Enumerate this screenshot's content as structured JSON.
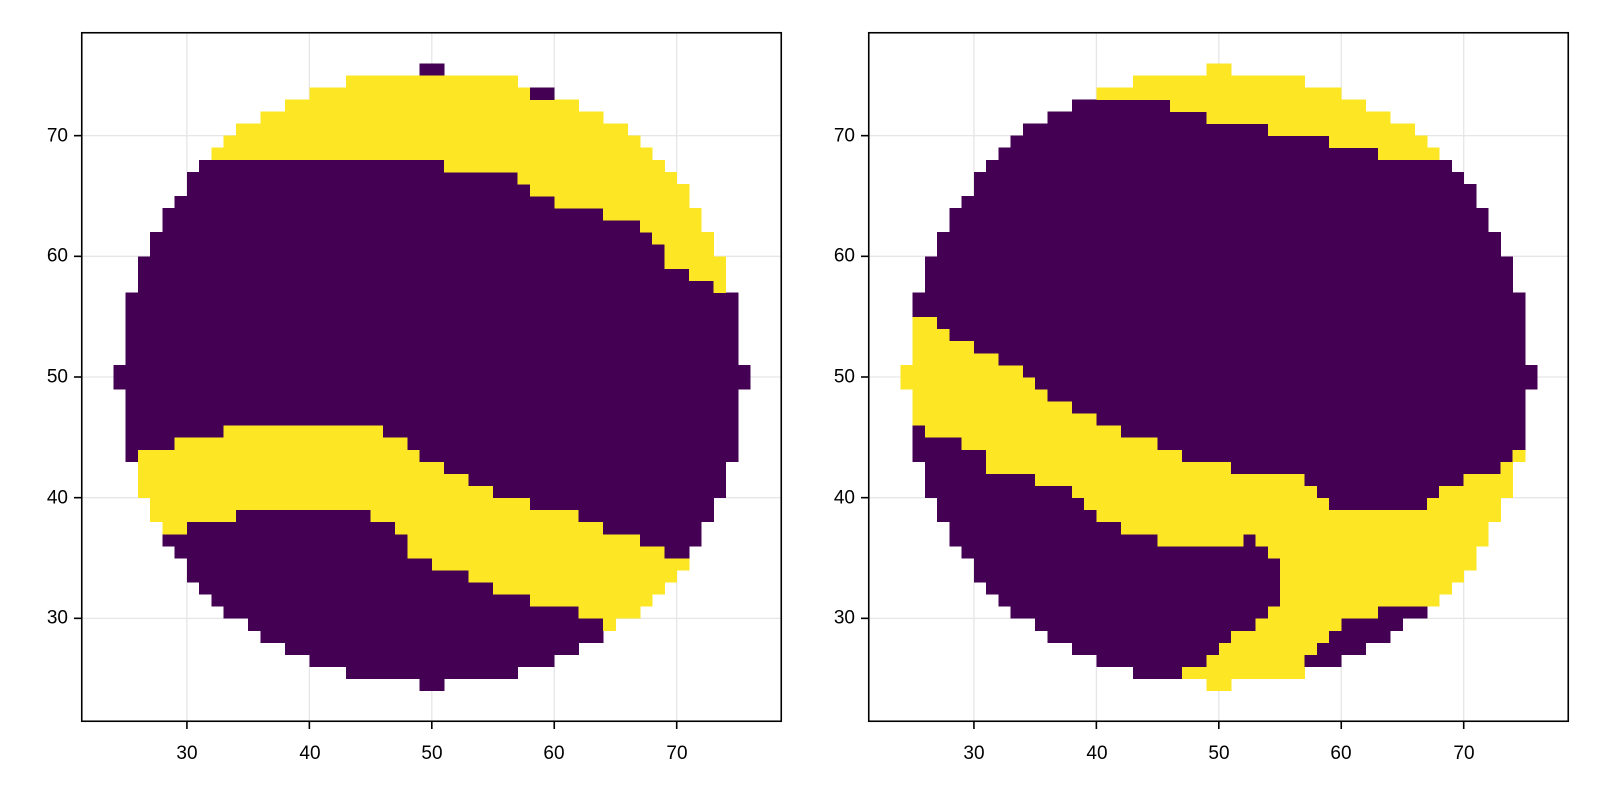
{
  "colors": {
    "low": "#440154",
    "high": "#FDE725",
    "grid": "#e6e6e6",
    "frame": "#000000"
  },
  "chart_data": [
    {
      "type": "heatmap",
      "title": "",
      "xlabel": "",
      "ylabel": "",
      "xlim": [
        21.35,
        78.6
      ],
      "ylim": [
        21.41,
        78.59
      ],
      "xticks": [
        30,
        40,
        50,
        60,
        70
      ],
      "yticks": [
        30,
        40,
        50,
        60,
        70
      ],
      "grid": true,
      "cell_size": 1,
      "encoding": "rows[y_lower] = list of [x_start, x_end, value] (x_end exclusive); value 0=dark(#440154), 1=yellow(#FDE725)",
      "rows": {
        "75": [
          [
            49,
            51,
            0
          ]
        ],
        "74": [
          [
            43,
            57,
            1
          ]
        ],
        "73": [
          [
            40,
            58,
            1
          ],
          [
            58,
            60,
            0
          ]
        ],
        "72": [
          [
            38,
            62,
            1
          ]
        ],
        "71": [
          [
            36,
            64,
            1
          ]
        ],
        "70": [
          [
            34,
            66,
            1
          ]
        ],
        "69": [
          [
            33,
            67,
            1
          ]
        ],
        "68": [
          [
            32,
            68,
            1
          ]
        ],
        "67": [
          [
            31,
            51,
            0
          ],
          [
            51,
            69,
            1
          ]
        ],
        "66": [
          [
            30,
            57,
            0
          ],
          [
            57,
            70,
            1
          ]
        ],
        "65": [
          [
            30,
            58,
            0
          ],
          [
            58,
            71,
            1
          ]
        ],
        "64": [
          [
            29,
            60,
            0
          ],
          [
            60,
            71,
            1
          ]
        ],
        "63": [
          [
            28,
            64,
            0
          ],
          [
            64,
            72,
            1
          ]
        ],
        "62": [
          [
            28,
            67,
            0
          ],
          [
            67,
            72,
            1
          ]
        ],
        "61": [
          [
            27,
            68,
            0
          ],
          [
            68,
            73,
            1
          ]
        ],
        "60": [
          [
            27,
            69,
            0
          ],
          [
            69,
            73,
            1
          ]
        ],
        "59": [
          [
            26,
            69,
            0
          ],
          [
            69,
            74,
            1
          ]
        ],
        "58": [
          [
            26,
            71,
            0
          ],
          [
            71,
            74,
            1
          ]
        ],
        "57": [
          [
            26,
            73,
            0
          ],
          [
            73,
            74,
            1
          ]
        ],
        "56": [
          [
            25,
            75,
            0
          ]
        ],
        "55": [
          [
            25,
            75,
            0
          ]
        ],
        "54": [
          [
            25,
            75,
            0
          ]
        ],
        "53": [
          [
            25,
            75,
            0
          ]
        ],
        "52": [
          [
            25,
            75,
            0
          ]
        ],
        "51": [
          [
            25,
            75,
            0
          ]
        ],
        "50": [
          [
            24,
            76,
            0
          ]
        ],
        "49": [
          [
            24,
            76,
            0
          ]
        ],
        "48": [
          [
            25,
            75,
            0
          ]
        ],
        "47": [
          [
            25,
            75,
            0
          ]
        ],
        "46": [
          [
            25,
            75,
            0
          ]
        ],
        "45": [
          [
            25,
            33,
            0
          ],
          [
            33,
            46,
            1
          ],
          [
            46,
            75,
            0
          ]
        ],
        "44": [
          [
            25,
            29,
            0
          ],
          [
            29,
            48,
            1
          ],
          [
            48,
            75,
            0
          ]
        ],
        "43": [
          [
            25,
            26,
            0
          ],
          [
            26,
            49,
            1
          ],
          [
            49,
            75,
            0
          ]
        ],
        "42": [
          [
            26,
            51,
            1
          ],
          [
            51,
            74,
            0
          ]
        ],
        "41": [
          [
            26,
            53,
            1
          ],
          [
            53,
            74,
            0
          ]
        ],
        "40": [
          [
            26,
            55,
            1
          ],
          [
            55,
            74,
            0
          ]
        ],
        "39": [
          [
            27,
            58,
            1
          ],
          [
            58,
            73,
            0
          ]
        ],
        "38": [
          [
            27,
            34,
            1
          ],
          [
            34,
            45,
            0
          ],
          [
            45,
            62,
            1
          ],
          [
            62,
            73,
            0
          ]
        ],
        "37": [
          [
            28,
            30,
            1
          ],
          [
            30,
            47,
            0
          ],
          [
            47,
            64,
            1
          ],
          [
            64,
            72,
            0
          ]
        ],
        "36": [
          [
            28,
            48,
            0
          ],
          [
            48,
            67,
            1
          ],
          [
            67,
            72,
            0
          ]
        ],
        "35": [
          [
            29,
            48,
            0
          ],
          [
            48,
            69,
            1
          ],
          [
            69,
            71,
            0
          ]
        ],
        "34": [
          [
            30,
            50,
            0
          ],
          [
            50,
            71,
            1
          ]
        ],
        "33": [
          [
            30,
            53,
            0
          ],
          [
            53,
            70,
            1
          ]
        ],
        "32": [
          [
            31,
            55,
            0
          ],
          [
            55,
            69,
            1
          ]
        ],
        "31": [
          [
            32,
            58,
            0
          ],
          [
            58,
            68,
            1
          ]
        ],
        "30": [
          [
            33,
            62,
            0
          ],
          [
            62,
            67,
            1
          ]
        ],
        "29": [
          [
            35,
            64,
            0
          ],
          [
            64,
            65,
            1
          ]
        ],
        "28": [
          [
            36,
            64,
            0
          ]
        ],
        "27": [
          [
            38,
            62,
            0
          ]
        ],
        "26": [
          [
            40,
            60,
            0
          ]
        ],
        "25": [
          [
            43,
            57,
            0
          ]
        ],
        "24": [
          [
            49,
            51,
            0
          ]
        ]
      }
    },
    {
      "type": "heatmap",
      "title": "",
      "xlabel": "",
      "ylabel": "",
      "xlim": [
        21.35,
        78.6
      ],
      "ylim": [
        21.41,
        78.59
      ],
      "xticks": [
        30,
        40,
        50,
        60,
        70
      ],
      "yticks": [
        30,
        40,
        50,
        60,
        70
      ],
      "grid": true,
      "cell_size": 1,
      "encoding": "rows[y_lower] = list of [x_start, x_end, value] (x_end exclusive); value 0=dark(#440154), 1=yellow(#FDE725)",
      "rows": {
        "75": [
          [
            49,
            51,
            1
          ]
        ],
        "74": [
          [
            43,
            57,
            1
          ]
        ],
        "73": [
          [
            40,
            60,
            1
          ]
        ],
        "72": [
          [
            38,
            46,
            0
          ],
          [
            46,
            62,
            1
          ]
        ],
        "71": [
          [
            36,
            49,
            0
          ],
          [
            49,
            64,
            1
          ]
        ],
        "70": [
          [
            34,
            54,
            0
          ],
          [
            54,
            66,
            1
          ]
        ],
        "69": [
          [
            33,
            59,
            0
          ],
          [
            59,
            67,
            1
          ]
        ],
        "68": [
          [
            32,
            63,
            0
          ],
          [
            63,
            68,
            1
          ]
        ],
        "67": [
          [
            31,
            69,
            0
          ]
        ],
        "66": [
          [
            30,
            70,
            0
          ]
        ],
        "65": [
          [
            30,
            71,
            0
          ]
        ],
        "64": [
          [
            29,
            71,
            0
          ]
        ],
        "63": [
          [
            28,
            72,
            0
          ]
        ],
        "62": [
          [
            28,
            72,
            0
          ]
        ],
        "61": [
          [
            27,
            73,
            0
          ]
        ],
        "60": [
          [
            27,
            73,
            0
          ]
        ],
        "59": [
          [
            26,
            74,
            0
          ]
        ],
        "58": [
          [
            26,
            74,
            0
          ]
        ],
        "57": [
          [
            26,
            74,
            0
          ]
        ],
        "56": [
          [
            25,
            75,
            0
          ]
        ],
        "55": [
          [
            25,
            75,
            0
          ]
        ],
        "54": [
          [
            25,
            27,
            1
          ],
          [
            27,
            75,
            0
          ]
        ],
        "53": [
          [
            25,
            28,
            1
          ],
          [
            28,
            75,
            0
          ]
        ],
        "52": [
          [
            25,
            30,
            1
          ],
          [
            30,
            75,
            0
          ]
        ],
        "51": [
          [
            25,
            32,
            1
          ],
          [
            32,
            75,
            0
          ]
        ],
        "50": [
          [
            24,
            34,
            1
          ],
          [
            34,
            76,
            0
          ]
        ],
        "49": [
          [
            24,
            35,
            1
          ],
          [
            35,
            76,
            0
          ]
        ],
        "48": [
          [
            25,
            36,
            1
          ],
          [
            36,
            75,
            0
          ]
        ],
        "47": [
          [
            25,
            38,
            1
          ],
          [
            38,
            75,
            0
          ]
        ],
        "46": [
          [
            25,
            40,
            1
          ],
          [
            40,
            75,
            0
          ]
        ],
        "45": [
          [
            25,
            26,
            0
          ],
          [
            26,
            42,
            1
          ],
          [
            42,
            75,
            0
          ]
        ],
        "44": [
          [
            25,
            29,
            0
          ],
          [
            29,
            45,
            1
          ],
          [
            45,
            75,
            0
          ]
        ],
        "43": [
          [
            25,
            31,
            0
          ],
          [
            31,
            47,
            1
          ],
          [
            47,
            74,
            0
          ],
          [
            74,
            75,
            1
          ]
        ],
        "42": [
          [
            26,
            31,
            0
          ],
          [
            31,
            51,
            1
          ],
          [
            51,
            73,
            0
          ],
          [
            73,
            74,
            1
          ]
        ],
        "41": [
          [
            26,
            35,
            0
          ],
          [
            35,
            57,
            1
          ],
          [
            57,
            70,
            0
          ],
          [
            70,
            74,
            1
          ]
        ],
        "40": [
          [
            26,
            38,
            0
          ],
          [
            38,
            58,
            1
          ],
          [
            58,
            68,
            0
          ],
          [
            68,
            74,
            1
          ]
        ],
        "39": [
          [
            27,
            39,
            0
          ],
          [
            39,
            59,
            1
          ],
          [
            59,
            67,
            0
          ],
          [
            67,
            73,
            1
          ]
        ],
        "38": [
          [
            27,
            40,
            0
          ],
          [
            40,
            73,
            1
          ]
        ],
        "37": [
          [
            28,
            42,
            0
          ],
          [
            42,
            72,
            1
          ]
        ],
        "36": [
          [
            28,
            45,
            0
          ],
          [
            45,
            52,
            1
          ],
          [
            52,
            53,
            0
          ],
          [
            53,
            72,
            1
          ]
        ],
        "35": [
          [
            29,
            54,
            0
          ],
          [
            54,
            71,
            1
          ]
        ],
        "34": [
          [
            30,
            55,
            0
          ],
          [
            55,
            71,
            1
          ]
        ],
        "33": [
          [
            30,
            55,
            0
          ],
          [
            55,
            70,
            1
          ]
        ],
        "32": [
          [
            31,
            55,
            0
          ],
          [
            55,
            69,
            1
          ]
        ],
        "31": [
          [
            32,
            55,
            0
          ],
          [
            55,
            68,
            1
          ]
        ],
        "30": [
          [
            33,
            54,
            0
          ],
          [
            54,
            63,
            1
          ],
          [
            63,
            67,
            0
          ]
        ],
        "29": [
          [
            35,
            53,
            0
          ],
          [
            53,
            60,
            1
          ],
          [
            60,
            65,
            0
          ]
        ],
        "28": [
          [
            36,
            51,
            0
          ],
          [
            51,
            59,
            1
          ],
          [
            59,
            64,
            0
          ]
        ],
        "27": [
          [
            38,
            50,
            0
          ],
          [
            50,
            58,
            1
          ],
          [
            58,
            62,
            0
          ]
        ],
        "26": [
          [
            40,
            49,
            0
          ],
          [
            49,
            57,
            1
          ],
          [
            57,
            60,
            0
          ]
        ],
        "25": [
          [
            43,
            47,
            0
          ],
          [
            47,
            57,
            1
          ]
        ],
        "24": [
          [
            49,
            51,
            1
          ]
        ]
      }
    }
  ],
  "panels": [
    {
      "x_tick_labels": [
        "30",
        "40",
        "50",
        "60",
        "70"
      ],
      "y_tick_labels": [
        "70",
        "60",
        "50",
        "40",
        "30"
      ]
    },
    {
      "x_tick_labels": [
        "30",
        "40",
        "50",
        "60",
        "70"
      ],
      "y_tick_labels": [
        "70",
        "60",
        "50",
        "40",
        "30"
      ]
    }
  ]
}
